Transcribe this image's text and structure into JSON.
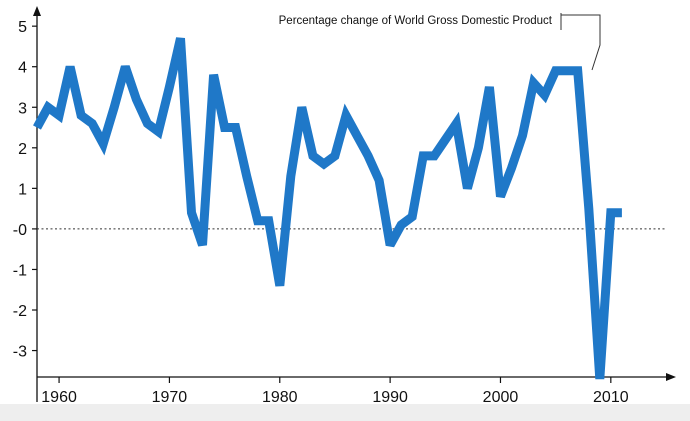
{
  "chart_data": {
    "type": "line",
    "title": "",
    "xlabel": "",
    "ylabel": "",
    "annotation": "Percentage change of World Gross Domestic Product",
    "xlim": [
      1958,
      2015
    ],
    "ylim": [
      -3.8,
      5.3
    ],
    "grid": false,
    "reference_line": 0,
    "x_ticks": [
      1960,
      1970,
      1980,
      1990,
      2000,
      2010
    ],
    "x_tick_labels": [
      "1960",
      "1970",
      "1980",
      "1990",
      "2000",
      "2010"
    ],
    "y_ticks": [
      5,
      4,
      3,
      2,
      1,
      0,
      -1,
      -2,
      -3
    ],
    "y_tick_labels": [
      "5",
      "4",
      "3",
      "2",
      "1",
      "-0",
      "-1",
      "-2",
      "-3"
    ],
    "series": [
      {
        "color": "#1f78c8",
        "x": [
          1958,
          1959,
          1960,
          1961,
          1962,
          1963,
          1964,
          1965,
          1966,
          1967,
          1968,
          1969,
          1970,
          1971,
          1972,
          1973,
          1974,
          1975,
          1976,
          1977,
          1978,
          1979,
          1980,
          1981,
          1982,
          1983,
          1984,
          1985,
          1986,
          1987,
          1988,
          1989,
          1990,
          1991,
          1992,
          1993,
          1994,
          1995,
          1996,
          1997,
          1998,
          1999,
          2000,
          2001,
          2002,
          2003,
          2004,
          2005,
          2006,
          2007,
          2008,
          2009,
          2010,
          2011
        ],
        "values": [
          2.5,
          3.0,
          2.8,
          4.0,
          2.8,
          2.6,
          2.1,
          3.0,
          4.0,
          3.2,
          2.6,
          2.4,
          3.5,
          4.7,
          0.4,
          -0.4,
          3.8,
          2.5,
          2.5,
          1.3,
          0.2,
          0.2,
          -1.4,
          1.3,
          3.0,
          1.8,
          1.6,
          1.8,
          2.8,
          2.3,
          1.8,
          1.2,
          -0.4,
          0.1,
          0.3,
          1.8,
          1.8,
          2.2,
          2.6,
          1.0,
          2.0,
          3.5,
          0.8,
          1.5,
          2.3,
          3.6,
          3.3,
          3.9,
          3.9,
          3.9,
          0.5,
          -3.7,
          0.4,
          0.4
        ]
      }
    ]
  }
}
